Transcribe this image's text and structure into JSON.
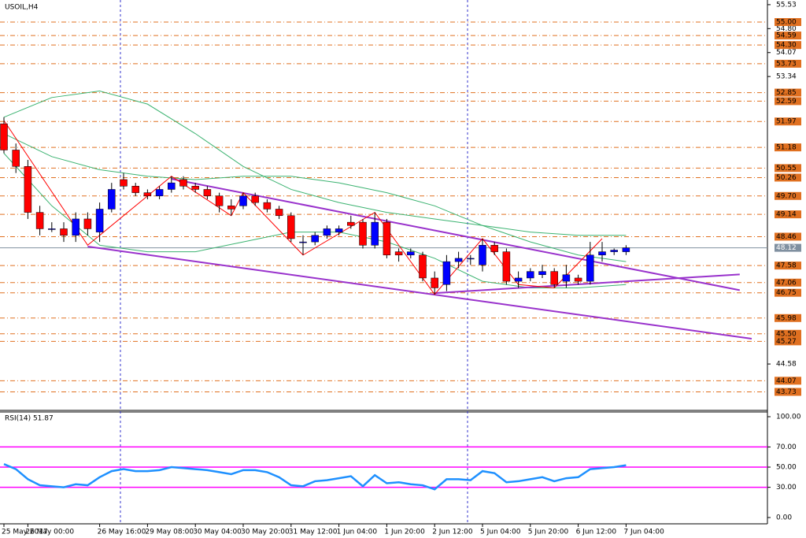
{
  "chart_data": {
    "type": "candlestick",
    "title": "USOIL,H4",
    "categories": [
      "25 May 2017",
      null,
      "26 May 00:00",
      null,
      null,
      null,
      null,
      null,
      "26 May 16:00",
      null,
      null,
      null,
      "29 May 08:00",
      null,
      null,
      null,
      "30 May 04:00",
      null,
      null,
      null,
      "30 May 20:00",
      null,
      null,
      null,
      "31 May 12:00",
      null,
      null,
      null,
      "1 Jun 04:00",
      null,
      null,
      null,
      "1 Jun 20:00",
      null,
      null,
      null,
      "2 Jun 12:00",
      null,
      null,
      null,
      "5 Jun 04:00",
      null,
      null,
      null,
      "5 Jun 20:00",
      null,
      null,
      null,
      "6 Jun 12:00",
      null,
      null,
      null,
      "7 Jun 04:00"
    ],
    "open": [
      51.9,
      51.1,
      50.6,
      49.2,
      48.7,
      48.7,
      48.5,
      49.0,
      48.6,
      49.3,
      50.2,
      50.0,
      49.8,
      49.7,
      49.9,
      50.2,
      50.0,
      49.9,
      49.7,
      49.4,
      49.4,
      49.7,
      49.5,
      49.3,
      49.1,
      48.3,
      48.3,
      48.5,
      48.6,
      48.9,
      48.9,
      48.2,
      48.9,
      48.0,
      47.9,
      47.9,
      47.2,
      47.0,
      47.7,
      47.8,
      47.6,
      48.2,
      48.0,
      47.1,
      47.2,
      47.3,
      47.4,
      47.1,
      47.2,
      47.1,
      47.9,
      48.0,
      48.0
    ],
    "high": [
      52.1,
      51.3,
      50.8,
      49.4,
      48.9,
      48.9,
      49.2,
      49.2,
      49.5,
      50.1,
      50.4,
      50.1,
      49.9,
      50.0,
      50.3,
      50.3,
      50.1,
      50.0,
      49.8,
      49.6,
      49.8,
      49.8,
      49.6,
      49.4,
      49.2,
      48.5,
      48.6,
      48.8,
      48.8,
      49.1,
      49.0,
      49.2,
      49.0,
      48.1,
      48.1,
      48.0,
      47.4,
      47.9,
      48.0,
      47.9,
      48.4,
      48.3,
      48.1,
      47.4,
      47.5,
      47.6,
      47.5,
      47.6,
      47.3,
      48.3,
      48.3,
      48.1,
      48.2
    ],
    "low": [
      51.0,
      50.4,
      49.0,
      48.5,
      48.6,
      48.3,
      48.3,
      48.5,
      48.3,
      49.2,
      49.9,
      49.7,
      49.6,
      49.6,
      49.8,
      49.9,
      49.8,
      49.6,
      49.2,
      49.1,
      49.3,
      49.4,
      49.2,
      49.0,
      48.3,
      47.9,
      48.2,
      48.4,
      48.5,
      48.7,
      48.1,
      48.1,
      47.8,
      47.7,
      47.8,
      47.1,
      46.7,
      46.8,
      47.5,
      47.6,
      47.4,
      47.9,
      47.0,
      46.9,
      47.1,
      47.2,
      46.9,
      46.9,
      47.0,
      47.0,
      47.7,
      47.9,
      47.9
    ],
    "close": [
      51.1,
      50.6,
      49.2,
      48.7,
      48.7,
      48.5,
      49.0,
      48.7,
      49.3,
      49.9,
      50.0,
      49.8,
      49.7,
      49.9,
      50.1,
      50.0,
      49.9,
      49.7,
      49.4,
      49.3,
      49.7,
      49.5,
      49.3,
      49.1,
      48.4,
      48.3,
      48.5,
      48.7,
      48.7,
      48.8,
      48.2,
      48.9,
      47.9,
      47.9,
      48.0,
      47.2,
      46.9,
      47.7,
      47.8,
      47.8,
      48.2,
      48.0,
      47.1,
      47.2,
      47.4,
      47.4,
      47.0,
      47.3,
      47.1,
      47.9,
      48.0,
      48.05,
      48.12
    ],
    "up_color": "#0000ff",
    "down_color": "#ff0000",
    "ylim": [
      43.19,
      55.6
    ],
    "yticks": [
      55.53,
      {
        "value": 54.8,
        "label": "54.80"
      },
      54.07,
      53.34,
      44.58
    ],
    "levels": [
      {
        "value": 55,
        "label": "55.00"
      },
      54.59,
      {
        "value": 54.3,
        "label": "54.30"
      },
      53.73,
      52.85,
      52.59,
      51.97,
      51.18,
      50.55,
      50.26,
      {
        "value": 49.7,
        "label": "49.70"
      },
      49.14,
      48.46,
      47.58,
      47.06,
      46.75,
      45.98,
      {
        "value": 45.5,
        "label": "45.50"
      },
      45.27,
      44.07,
      43.73
    ],
    "level_color": "#e07020",
    "current_price": 48.12,
    "bollinger": {
      "color": "#3cb371",
      "x": [
        0,
        4,
        8,
        12,
        16,
        20,
        24,
        28,
        32,
        36,
        40,
        44,
        48,
        52
      ],
      "upper": [
        52.1,
        52.7,
        52.9,
        52.5,
        51.6,
        50.6,
        49.9,
        49.5,
        49.2,
        49.0,
        48.8,
        48.6,
        48.5,
        48.5
      ],
      "middle": [
        51.6,
        50.9,
        50.5,
        50.3,
        50.2,
        50.3,
        50.3,
        50.1,
        49.8,
        49.4,
        48.8,
        48.3,
        47.9,
        47.7
      ],
      "lower": [
        51.0,
        49.4,
        48.2,
        48.0,
        48.0,
        48.3,
        48.6,
        48.6,
        48.3,
        47.8,
        47.1,
        46.9,
        46.9,
        47.0
      ]
    },
    "trendlines": {
      "color": "#9932cc",
      "lines": [
        {
          "x": [
            14,
            61.5
          ],
          "y": [
            50.22,
            46.83
          ]
        },
        {
          "x": [
            7,
            62.5
          ],
          "y": [
            48.16,
            45.35
          ]
        },
        {
          "x": [
            36,
            61.5
          ],
          "y": [
            46.74,
            47.31
          ]
        }
      ]
    },
    "zigzag": {
      "color": "#ff0000",
      "x": [
        0,
        7,
        14,
        19,
        20,
        25,
        31,
        36,
        40,
        43,
        46,
        50
      ],
      "y": [
        52.0,
        48.2,
        50.3,
        49.1,
        49.8,
        47.9,
        49.2,
        46.7,
        48.4,
        47.0,
        46.9,
        48.4
      ]
    },
    "rsi": {
      "title": "RSI(14) 51.87",
      "color": "#1e90ff",
      "values": [
        53,
        48,
        38,
        32,
        31,
        30,
        33,
        32,
        40,
        46,
        48,
        46,
        46,
        47,
        50,
        49,
        48,
        47,
        45,
        43,
        47,
        47,
        45,
        40,
        32,
        31,
        36,
        37,
        39,
        41,
        31,
        42,
        34,
        35,
        33,
        32,
        28,
        38,
        38,
        37,
        46,
        44,
        35,
        36,
        38,
        40,
        36,
        39,
        40,
        48,
        49,
        50,
        51.87
      ],
      "ylim": [
        -6.25,
        104.7
      ],
      "yticks": [
        {
          "value": 100,
          "label": "100.00"
        },
        {
          "value": 70,
          "label": "70.00"
        },
        {
          "value": 50,
          "label": "50.00"
        },
        {
          "value": 30,
          "label": "30.00"
        },
        {
          "value": 0,
          "label": "0.00"
        }
      ],
      "levels": [
        70,
        50,
        30
      ],
      "level_color": "#ff00ff"
    }
  }
}
